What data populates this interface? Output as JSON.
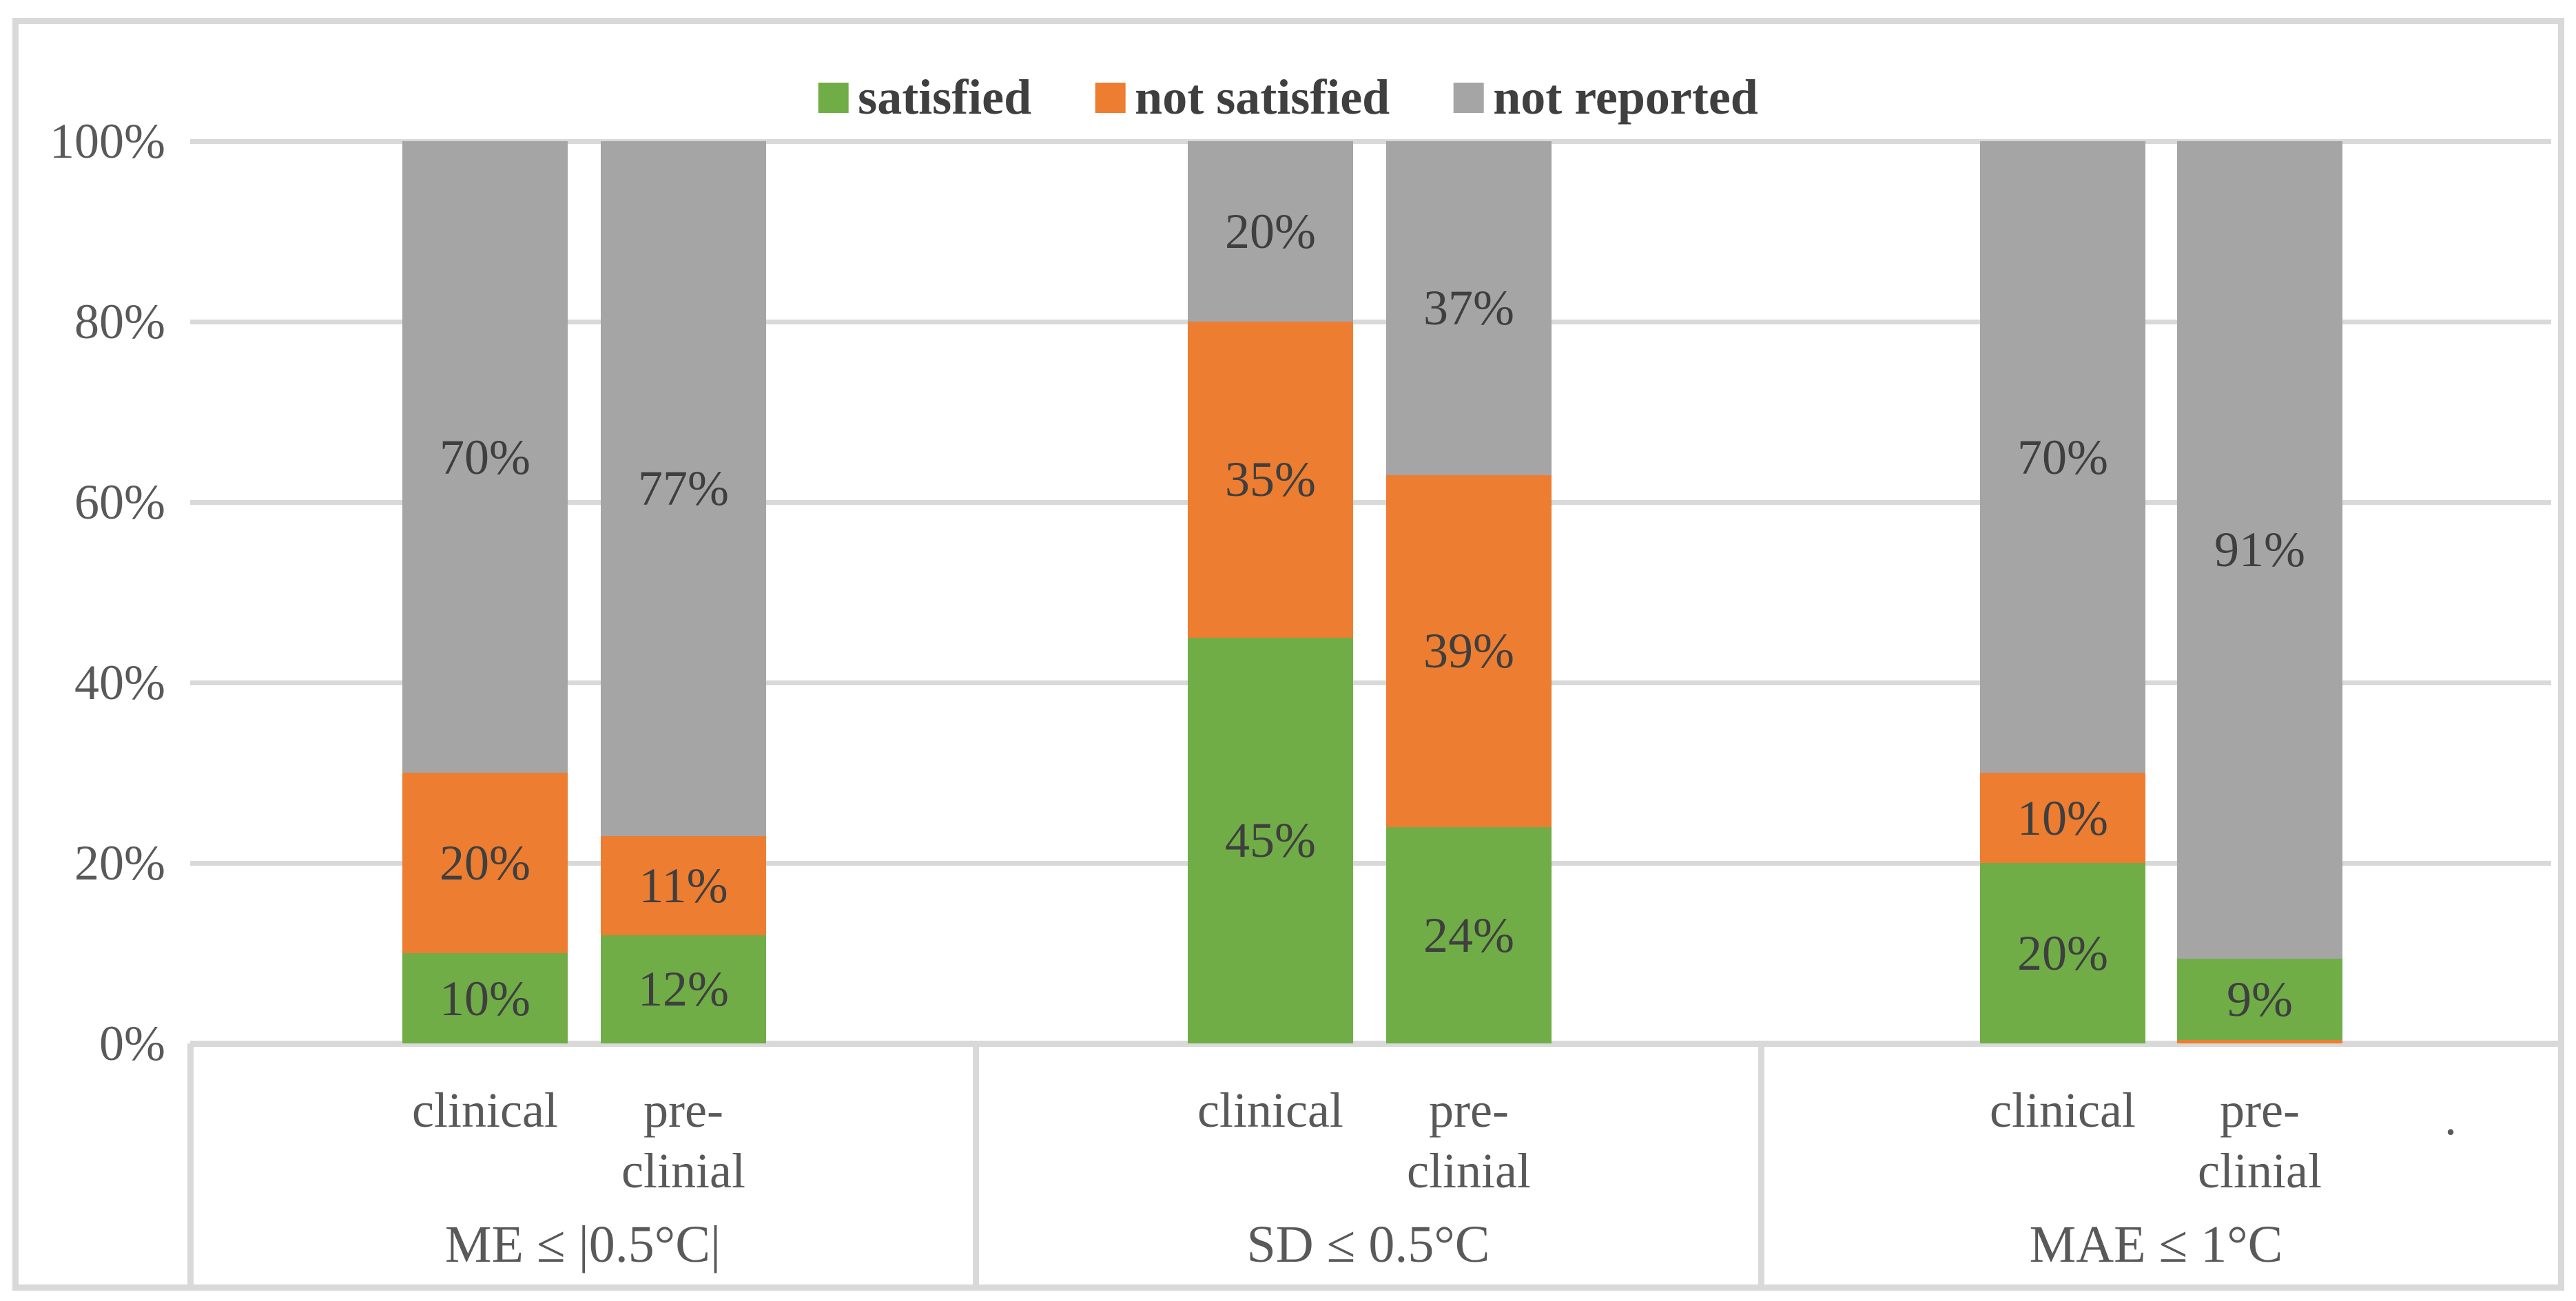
{
  "stray_text": ".",
  "colors": {
    "grid": "#D9D9D9",
    "axis_text": "#595959",
    "data_label_text": "#3F3F3F",
    "background": "#FFFFFF"
  },
  "chart_data": {
    "type": "bar",
    "stacked": true,
    "percent_stacked": true,
    "title": "",
    "legend_position": "top",
    "legend": [
      {
        "label": "satisfied",
        "series": "satisfied"
      },
      {
        "label": "not satisfied",
        "series": "not satisfied"
      },
      {
        "label": "not reported",
        "series": "not reported"
      }
    ],
    "series_colors": {
      "satisfied": "#70AD47",
      "not satisfied": "#ED7D31",
      "not reported": "#A5A5A5"
    },
    "y_axis": {
      "min": 0,
      "max": 100,
      "gridlines": true,
      "ticks_top_to_bottom": [
        "100%",
        "80%",
        "60%",
        "40%",
        "20%",
        "0%"
      ]
    },
    "groups": [
      {
        "label": "ME ≤ |0.5°C|",
        "bars": [
          {
            "category_lines": [
              "clinical"
            ],
            "segments": [
              {
                "series": "satisfied",
                "value": 10,
                "label": "10%"
              },
              {
                "series": "not satisfied",
                "value": 20,
                "label": "20%"
              },
              {
                "series": "not reported",
                "value": 70,
                "label": "70%"
              }
            ]
          },
          {
            "category_lines": [
              "pre-",
              "clinial"
            ],
            "segments": [
              {
                "series": "satisfied",
                "value": 12,
                "label": "12%"
              },
              {
                "series": "not satisfied",
                "value": 11,
                "label": "11%"
              },
              {
                "series": "not reported",
                "value": 77,
                "label": "77%"
              }
            ]
          }
        ]
      },
      {
        "label": "SD  ≤ 0.5°C",
        "bars": [
          {
            "category_lines": [
              "clinical"
            ],
            "segments": [
              {
                "series": "satisfied",
                "value": 45,
                "label": "45%"
              },
              {
                "series": "not satisfied",
                "value": 35,
                "label": "35%"
              },
              {
                "series": "not reported",
                "value": 20,
                "label": "20%"
              }
            ]
          },
          {
            "category_lines": [
              "pre-",
              "clinial"
            ],
            "segments": [
              {
                "series": "satisfied",
                "value": 24,
                "label": "24%"
              },
              {
                "series": "not satisfied",
                "value": 39,
                "label": "39%"
              },
              {
                "series": "not reported",
                "value": 37,
                "label": "37%"
              }
            ]
          }
        ]
      },
      {
        "label": "MAE ≤ 1°C",
        "bars": [
          {
            "category_lines": [
              "clinical"
            ],
            "segments": [
              {
                "series": "satisfied",
                "value": 20,
                "label": "20%"
              },
              {
                "series": "not satisfied",
                "value": 10,
                "label": "10%"
              },
              {
                "series": "not reported",
                "value": 70,
                "label": "70%"
              }
            ]
          },
          {
            "category_lines": [
              "pre-",
              "clinial"
            ],
            "segments": [
              {
                "series": "not satisfied",
                "value": 0.4,
                "label": ""
              },
              {
                "series": "satisfied",
                "value": 9,
                "label": "9%"
              },
              {
                "series": "not reported",
                "value": 90.6,
                "label": "91%"
              }
            ]
          }
        ]
      }
    ]
  }
}
